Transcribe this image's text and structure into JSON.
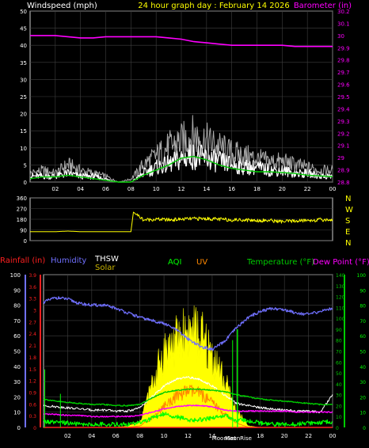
{
  "header": {
    "left_label": "Windspeed (mph)",
    "title": "24 hour graph day : February 14 2026",
    "right_label": "Barometer (in)"
  },
  "direction_letters": [
    "N",
    "W",
    "S",
    "E",
    "N"
  ],
  "bottom_legend": {
    "rainfall": "Rainfall (in)",
    "humidity": "Humidity",
    "thsw": "THSW",
    "solar": "Solar",
    "aqi": "AQI",
    "uv": "UV",
    "temperature": "Temperature (°F)",
    "dew_point": "Dew Point (°F)"
  },
  "moon_labels": {
    "moonset": "MoonSet",
    "moonrise": "MoonRise"
  },
  "colors": {
    "wind": "#ffffff",
    "gust": "#aaaaaa",
    "wind_avg": "#00cc00",
    "barometer": "#ff00ff",
    "header_title": "#ffff00",
    "direction": "#ffff00",
    "rainfall": "#ff2020",
    "humidity": "#7070ff",
    "thsw": "#ffffff",
    "solar": "#ffff00",
    "aqi": "#00ff00",
    "uv": "#ff8800",
    "temperature": "#00cc00",
    "dew_point": "#ff00ff",
    "axis_text": "#ffffff",
    "rain_axis": "#ff2020",
    "grid": "#404040",
    "frame": "#cccccc"
  },
  "chart_data": [
    {
      "type": "line",
      "name": "wind",
      "x_ticks": [
        "02",
        "04",
        "06",
        "08",
        "10",
        "12",
        "14",
        "16",
        "18",
        "20",
        "22",
        "00"
      ],
      "ylim": [
        0,
        50
      ],
      "y_ticks": [
        "0",
        "5",
        "10",
        "15",
        "20",
        "25",
        "30",
        "35",
        "40",
        "45",
        "50"
      ],
      "y2lim": [
        28.8,
        30.2
      ],
      "y2_ticks": [
        "28.8",
        "28.9",
        "29",
        "29.1",
        "29.2",
        "29.3",
        "29.4",
        "29.5",
        "29.6",
        "29.7",
        "29.8",
        "29.9",
        "30",
        "30.1",
        "30.2"
      ],
      "hours": [
        0,
        1,
        2,
        3,
        4,
        5,
        6,
        7,
        8,
        9,
        10,
        11,
        12,
        13,
        14,
        15,
        16,
        17,
        18,
        19,
        20,
        21,
        22,
        23,
        24
      ],
      "wind_gust": [
        3,
        4,
        3,
        6,
        4,
        3,
        2,
        0,
        1,
        6,
        9,
        12,
        14,
        16,
        14,
        12,
        10,
        9,
        8,
        7,
        7,
        6,
        5,
        4,
        4
      ],
      "wind_speed": [
        2,
        2,
        2,
        3,
        2,
        2,
        1,
        0,
        0,
        3,
        5,
        6,
        8,
        9,
        8,
        7,
        6,
        5,
        5,
        4,
        4,
        3,
        3,
        2,
        2
      ],
      "wind_avg": [
        1,
        1.5,
        1.5,
        2,
        1.5,
        1,
        0.5,
        0,
        0,
        2,
        3.5,
        5,
        7,
        7.5,
        6.5,
        5,
        4,
        3.5,
        3,
        3,
        2.8,
        2.5,
        2,
        1.8,
        1.6
      ],
      "barometer": [
        30.0,
        30.0,
        30.0,
        29.99,
        29.98,
        29.98,
        29.99,
        29.99,
        29.99,
        29.99,
        29.99,
        29.98,
        29.97,
        29.95,
        29.94,
        29.93,
        29.92,
        29.92,
        29.92,
        29.92,
        29.92,
        29.91,
        29.91,
        29.91,
        29.91
      ]
    },
    {
      "type": "line",
      "name": "wind_direction",
      "ylim": [
        0,
        360
      ],
      "y_ticks": [
        "0",
        "90",
        "180",
        "270",
        "360"
      ],
      "hours": [
        0,
        1,
        2,
        3,
        4,
        5,
        6,
        7,
        8,
        8.2,
        9,
        10,
        11,
        12,
        13,
        14,
        15,
        16,
        17,
        18,
        19,
        20,
        21,
        22,
        23,
        24
      ],
      "degrees": [
        75,
        75,
        75,
        80,
        75,
        75,
        75,
        75,
        75,
        240,
        175,
        180,
        175,
        180,
        185,
        185,
        180,
        175,
        175,
        170,
        170,
        160,
        165,
        170,
        175,
        175
      ]
    },
    {
      "type": "line",
      "name": "environment",
      "rain_ylim": [
        0,
        3.9
      ],
      "rain_ticks": [
        "0",
        "0.3",
        "0.6",
        "0.9",
        "1.2",
        "1.5",
        "1.8",
        "2.1",
        "2.4",
        "2.7",
        "3",
        "3.3",
        "3.6",
        "3.9"
      ],
      "pct_ylim": [
        0,
        100
      ],
      "pct_ticks": [
        "0",
        "10",
        "20",
        "30",
        "40",
        "50",
        "60",
        "70",
        "80",
        "90",
        "100"
      ],
      "temp_ylim": [
        0,
        140
      ],
      "temp_ticks": [
        "0",
        "10",
        "20",
        "30",
        "40",
        "50",
        "60",
        "70",
        "80",
        "90",
        "100",
        "110",
        "120",
        "130",
        "140"
      ],
      "aqi_ticks": [
        "0",
        "10",
        "20",
        "30",
        "40",
        "50",
        "60",
        "70",
        "80",
        "90",
        "100"
      ],
      "hours": [
        0,
        1,
        2,
        3,
        4,
        5,
        6,
        7,
        8,
        9,
        10,
        11,
        12,
        13,
        14,
        15,
        16,
        17,
        18,
        19,
        20,
        21,
        22,
        23,
        24
      ],
      "humidity": [
        82,
        85,
        84,
        81,
        80,
        80,
        78,
        75,
        72,
        70,
        68,
        64,
        58,
        53,
        51,
        56,
        65,
        72,
        76,
        78,
        77,
        75,
        74,
        76,
        78
      ],
      "temperature": [
        26,
        24,
        23,
        22,
        21,
        21,
        20,
        20,
        21,
        27,
        32,
        34,
        35,
        35,
        34,
        33,
        30,
        28,
        26,
        25,
        24,
        23,
        22,
        21,
        21
      ],
      "dew_point": [
        12,
        12,
        11,
        11,
        10,
        10,
        10,
        10,
        11,
        14,
        17,
        19,
        20,
        20,
        19,
        16,
        15,
        15,
        15,
        15,
        15,
        14,
        14,
        14,
        14
      ],
      "thsw": [
        20,
        19,
        18,
        17,
        16,
        16,
        15,
        15,
        18,
        28,
        38,
        44,
        46,
        44,
        38,
        30,
        22,
        20,
        18,
        17,
        16,
        15,
        15,
        14,
        30
      ],
      "solar_pct": [
        0,
        0,
        0,
        0,
        0,
        0,
        0,
        1,
        4,
        30,
        55,
        62,
        70,
        66,
        52,
        34,
        12,
        1,
        0,
        0,
        0,
        0,
        0,
        0,
        0
      ],
      "uv_pct": [
        0,
        0,
        0,
        0,
        0,
        0,
        0,
        0,
        1,
        6,
        14,
        20,
        24,
        22,
        16,
        9,
        3,
        0,
        0,
        0,
        0,
        0,
        0,
        0,
        0
      ],
      "aqi": [
        4,
        3,
        3,
        2,
        2,
        2,
        2,
        2,
        3,
        6,
        9,
        7,
        5,
        5,
        6,
        8,
        5,
        4,
        3,
        2,
        2,
        2,
        3,
        3,
        4
      ],
      "rainfall": [
        0,
        0,
        0,
        0,
        0,
        0,
        0,
        0,
        0,
        0,
        0,
        0,
        0,
        0,
        0,
        0,
        0,
        0,
        0,
        0,
        0,
        0,
        0,
        0,
        0
      ],
      "moonset_hour": 15.7,
      "moonrise_hour": 16.1
    }
  ]
}
